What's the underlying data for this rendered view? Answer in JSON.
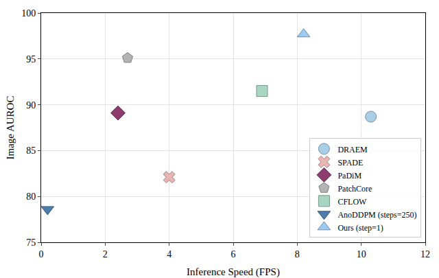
{
  "chart_data": {
    "type": "scatter",
    "x_label": "Inference Speed (FPS)",
    "y_label": "Image AUROC",
    "xlim": [
      0,
      12
    ],
    "xticks": [
      0,
      2,
      4,
      6,
      8,
      10,
      12
    ],
    "ylim": [
      75,
      100
    ],
    "yticks": [
      75,
      80,
      85,
      90,
      95,
      100
    ],
    "grid": true,
    "legend": "lower right",
    "series": [
      {
        "name": "DRAEM",
        "color": "#a9cfe8",
        "marker": "circle",
        "x": [
          10.3
        ],
        "values": [
          88.7
        ]
      },
      {
        "name": "SPADE",
        "color": "#e9b5b5",
        "marker": "x",
        "x": [
          4.0
        ],
        "values": [
          82.1
        ]
      },
      {
        "name": "PaDiM",
        "color": "#8e3b6e",
        "marker": "diamond",
        "x": [
          2.4
        ],
        "values": [
          89.1
        ]
      },
      {
        "name": "PatchCore",
        "color": "#b3b3b3",
        "marker": "pentagon",
        "x": [
          2.7
        ],
        "values": [
          95.1
        ]
      },
      {
        "name": "CFLOW",
        "color": "#a9d6c2",
        "marker": "square",
        "x": [
          6.9
        ],
        "values": [
          91.5
        ]
      },
      {
        "name": "AnoDDPM (steps=250)",
        "color": "#4d7eab",
        "marker": "triangle-down",
        "x": [
          0.2
        ],
        "values": [
          78.6
        ]
      },
      {
        "name": "Ours (step=1)",
        "color": "#9fcaf2",
        "marker": "triangle-up",
        "x": [
          8.2
        ],
        "values": [
          97.7
        ]
      }
    ]
  }
}
